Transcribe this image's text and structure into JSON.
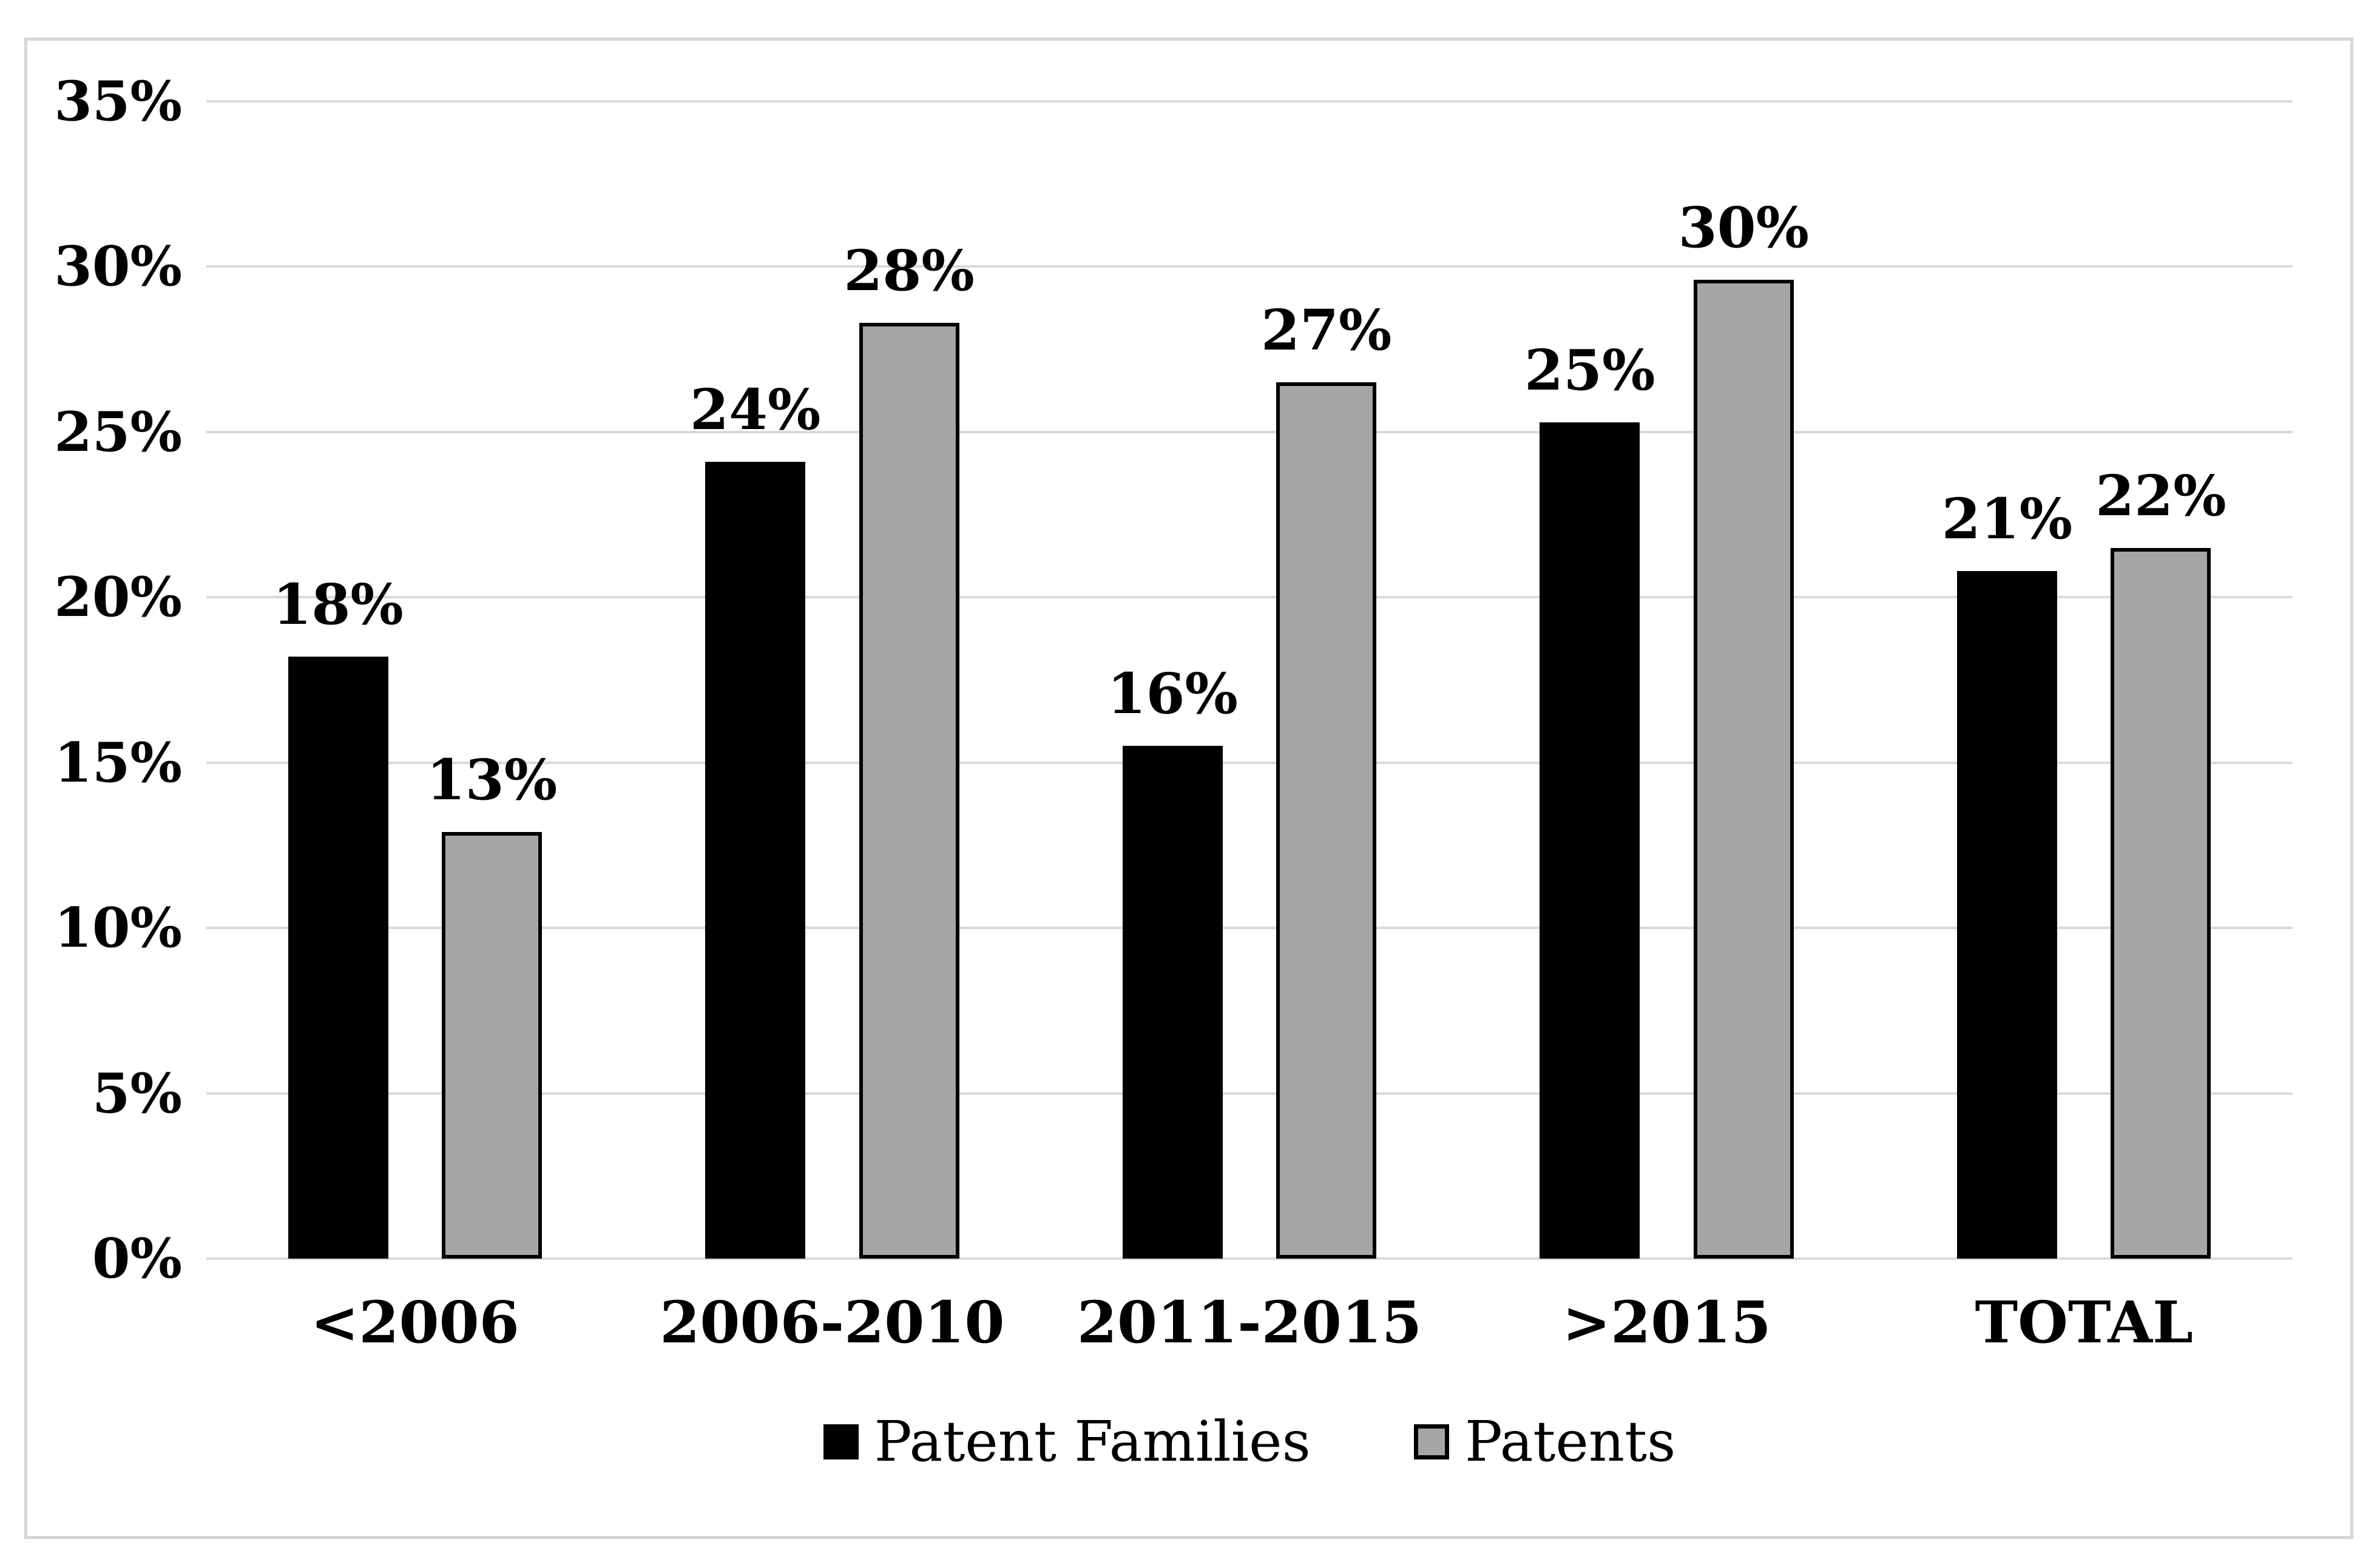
{
  "chart_data": {
    "type": "bar",
    "title": "",
    "xlabel": "",
    "ylabel": "",
    "categories": [
      "<2006",
      "2006-2010",
      "2011-2015",
      ">2015",
      "TOTAL"
    ],
    "series": [
      {
        "name": "Patent Families",
        "key": "black",
        "color": "#000000",
        "values": [
          18,
          24,
          16,
          25,
          21
        ],
        "data_labels": [
          "18%",
          "24%",
          "16%",
          "25%",
          "21%"
        ],
        "rendered_bar_heights_pct": [
          18.2,
          24.1,
          15.5,
          25.3,
          20.8
        ]
      },
      {
        "name": "Patents",
        "key": "gray",
        "color": "#A6A6A6",
        "outline_color": "#000000",
        "values": [
          13,
          28,
          27,
          30,
          22
        ],
        "data_labels": [
          "13%",
          "28%",
          "27%",
          "30%",
          "22%"
        ],
        "rendered_bar_heights_pct": [
          12.9,
          28.3,
          26.5,
          29.6,
          21.5
        ]
      }
    ],
    "y_ticks": [
      "35%",
      "30%",
      "25%",
      "20%",
      "15%",
      "10%",
      "5%",
      "0%"
    ],
    "ylim": [
      0,
      35
    ],
    "y_tick_step": 5,
    "grid": true,
    "gridline_color": "#D9D9D9",
    "frame_border_color": "#D6D6D6",
    "background_color": "#FFFFFF",
    "legend_position": "bottom"
  }
}
